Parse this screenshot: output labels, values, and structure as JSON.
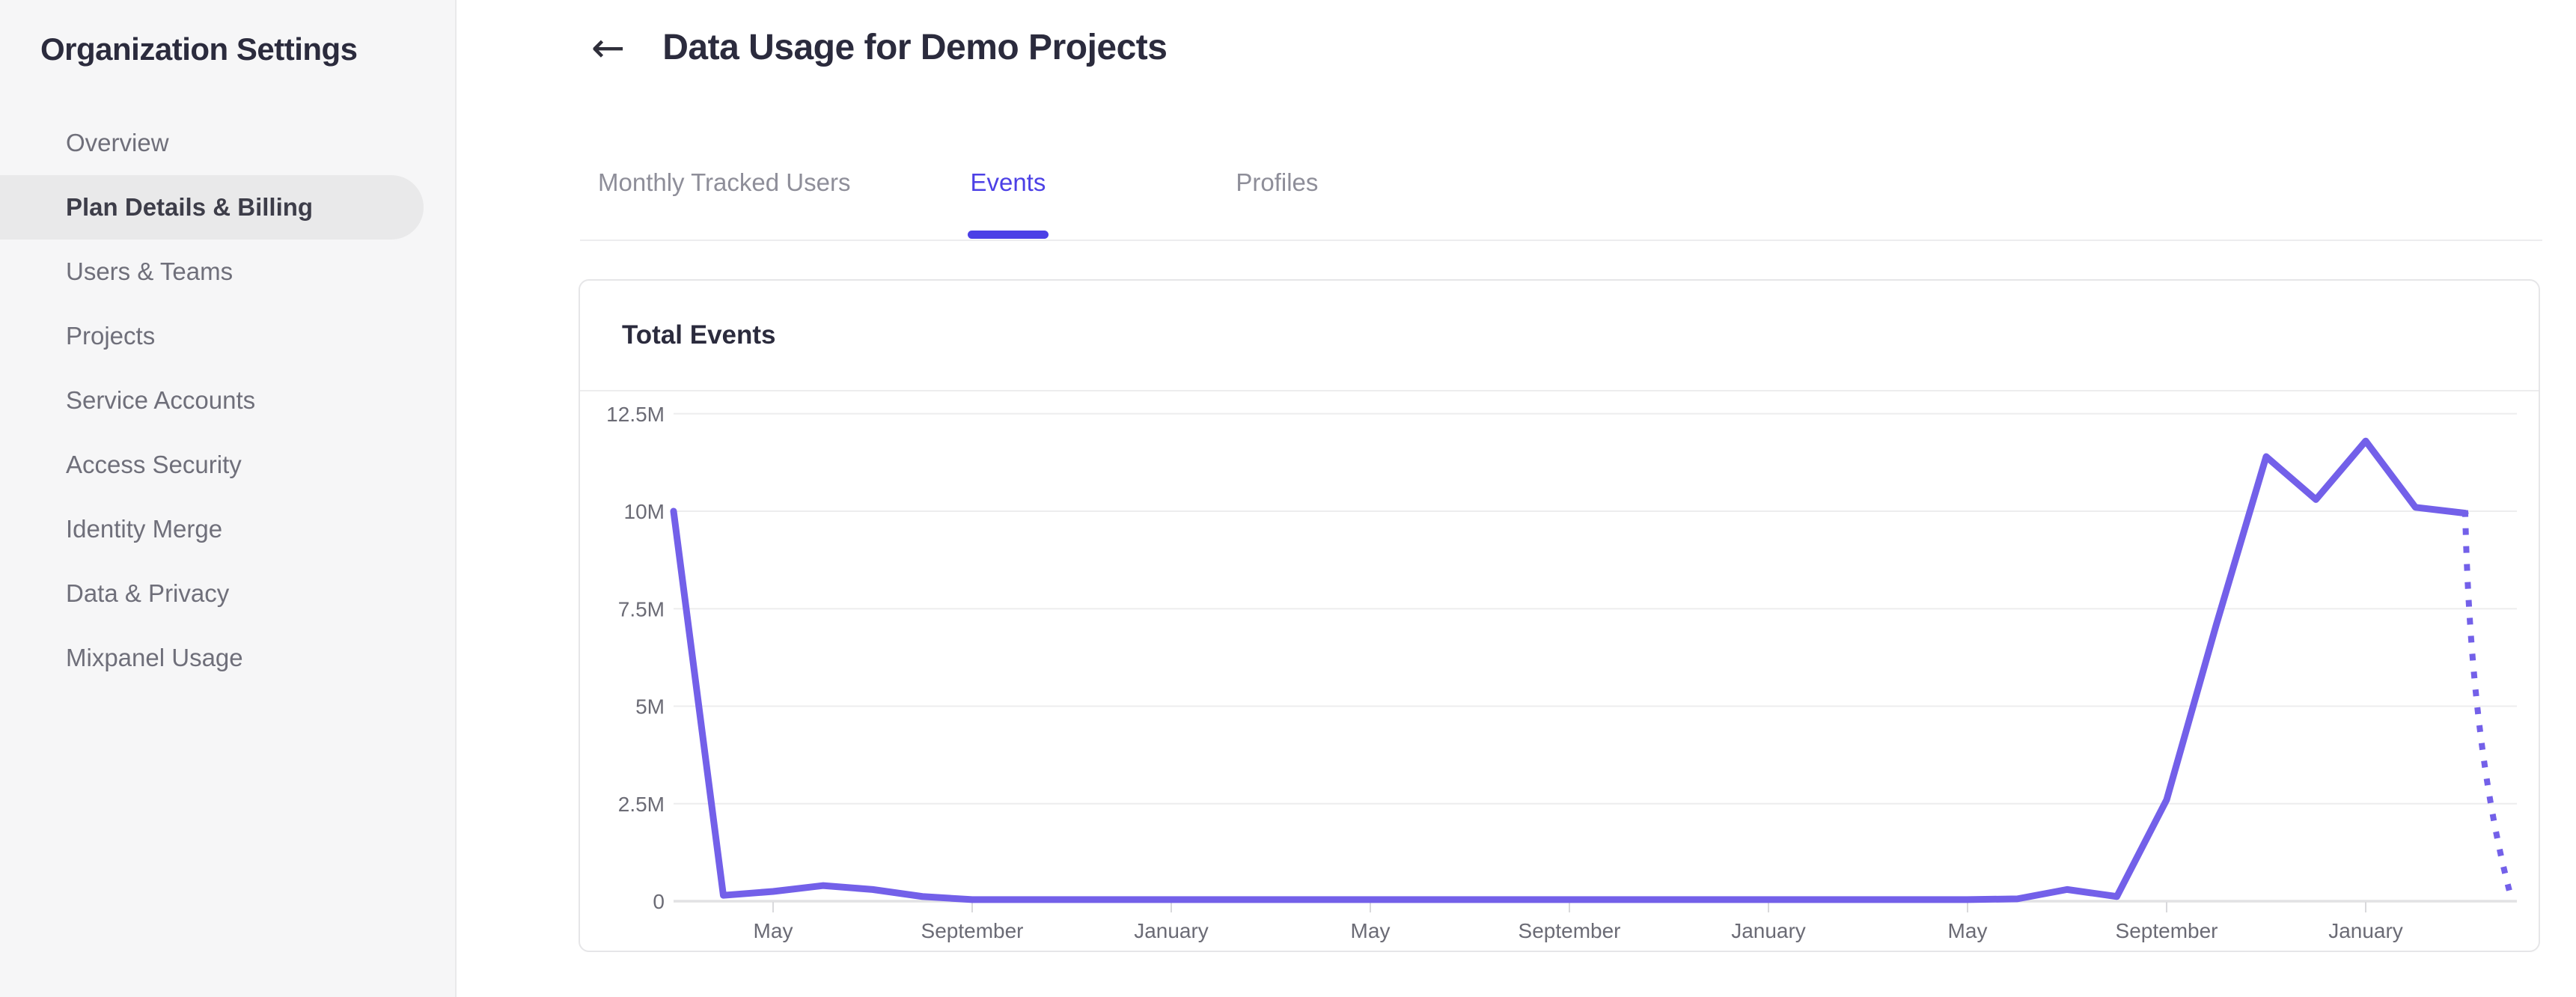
{
  "sidebar": {
    "title": "Organization Settings",
    "items": [
      {
        "label": "Overview",
        "selected": false
      },
      {
        "label": "Plan Details & Billing",
        "selected": true
      },
      {
        "label": "Users & Teams",
        "selected": false
      },
      {
        "label": "Projects",
        "selected": false
      },
      {
        "label": "Service Accounts",
        "selected": false
      },
      {
        "label": "Access Security",
        "selected": false
      },
      {
        "label": "Identity Merge",
        "selected": false
      },
      {
        "label": "Data & Privacy",
        "selected": false
      },
      {
        "label": "Mixpanel Usage",
        "selected": false
      }
    ]
  },
  "header": {
    "back_icon": "←",
    "title": "Data Usage for Demo Projects"
  },
  "tabs": {
    "items": [
      {
        "label": "Monthly Tracked Users",
        "active": false
      },
      {
        "label": "Events",
        "active": true
      },
      {
        "label": "Profiles",
        "active": false
      }
    ]
  },
  "usage_card": {
    "title": "Total Events"
  },
  "colors": {
    "accent_purple": "#4c40e6",
    "line_purple": "#7360e9",
    "text_dark": "#2b2b3d",
    "text_gray": "#6f6f7a",
    "tab_inactive": "#8e8e99",
    "gridline": "#ededee",
    "axis_line": "#e2e2e4",
    "tick_mark": "#d9d9dc",
    "axis_label": "#6b6b75",
    "sidebar_bg": "#f6f6f7",
    "selected_pill": "#e9e9ea"
  },
  "chart_data": {
    "type": "line",
    "title": "Total Events",
    "xlabel": "",
    "ylabel": "",
    "grid": "horizontal",
    "legend": "none",
    "point_interval": "monthly",
    "first_point_month": "March (year 1)",
    "ylim_m": [
      0,
      12.5
    ],
    "y_ticks": [
      {
        "label": "12.5M",
        "value_m": 12.5
      },
      {
        "label": "10M",
        "value_m": 10
      },
      {
        "label": "7.5M",
        "value_m": 7.5
      },
      {
        "label": "5M",
        "value_m": 5
      },
      {
        "label": "2.5M",
        "value_m": 2.5
      },
      {
        "label": "0",
        "value_m": 0
      }
    ],
    "x_ticks": [
      {
        "label": "May",
        "point_index": 2
      },
      {
        "label": "September",
        "point_index": 6
      },
      {
        "label": "January",
        "point_index": 10
      },
      {
        "label": "May",
        "point_index": 14
      },
      {
        "label": "September",
        "point_index": 18
      },
      {
        "label": "January",
        "point_index": 22
      },
      {
        "label": "May",
        "point_index": 26
      },
      {
        "label": "September",
        "point_index": 30
      },
      {
        "label": "January",
        "point_index": 34
      }
    ],
    "series": [
      {
        "name": "Total Events",
        "style": "solid",
        "values_m": [
          10,
          0.15,
          0.25,
          0.4,
          0.3,
          0.12,
          0.04,
          0.04,
          0.04,
          0.04,
          0.04,
          0.04,
          0.04,
          0.04,
          0.04,
          0.04,
          0.04,
          0.04,
          0.04,
          0.04,
          0.04,
          0.04,
          0.04,
          0.04,
          0.04,
          0.04,
          0.04,
          0.06,
          0.3,
          0.12,
          2.6,
          7.1,
          11.4,
          10.3,
          11.8,
          10.1,
          9.95
        ]
      },
      {
        "name": "Current period (projected)",
        "style": "dotted",
        "from_point_index": 36,
        "end_point_offset_months": 0.87,
        "end_value_m": 0.35
      }
    ]
  }
}
